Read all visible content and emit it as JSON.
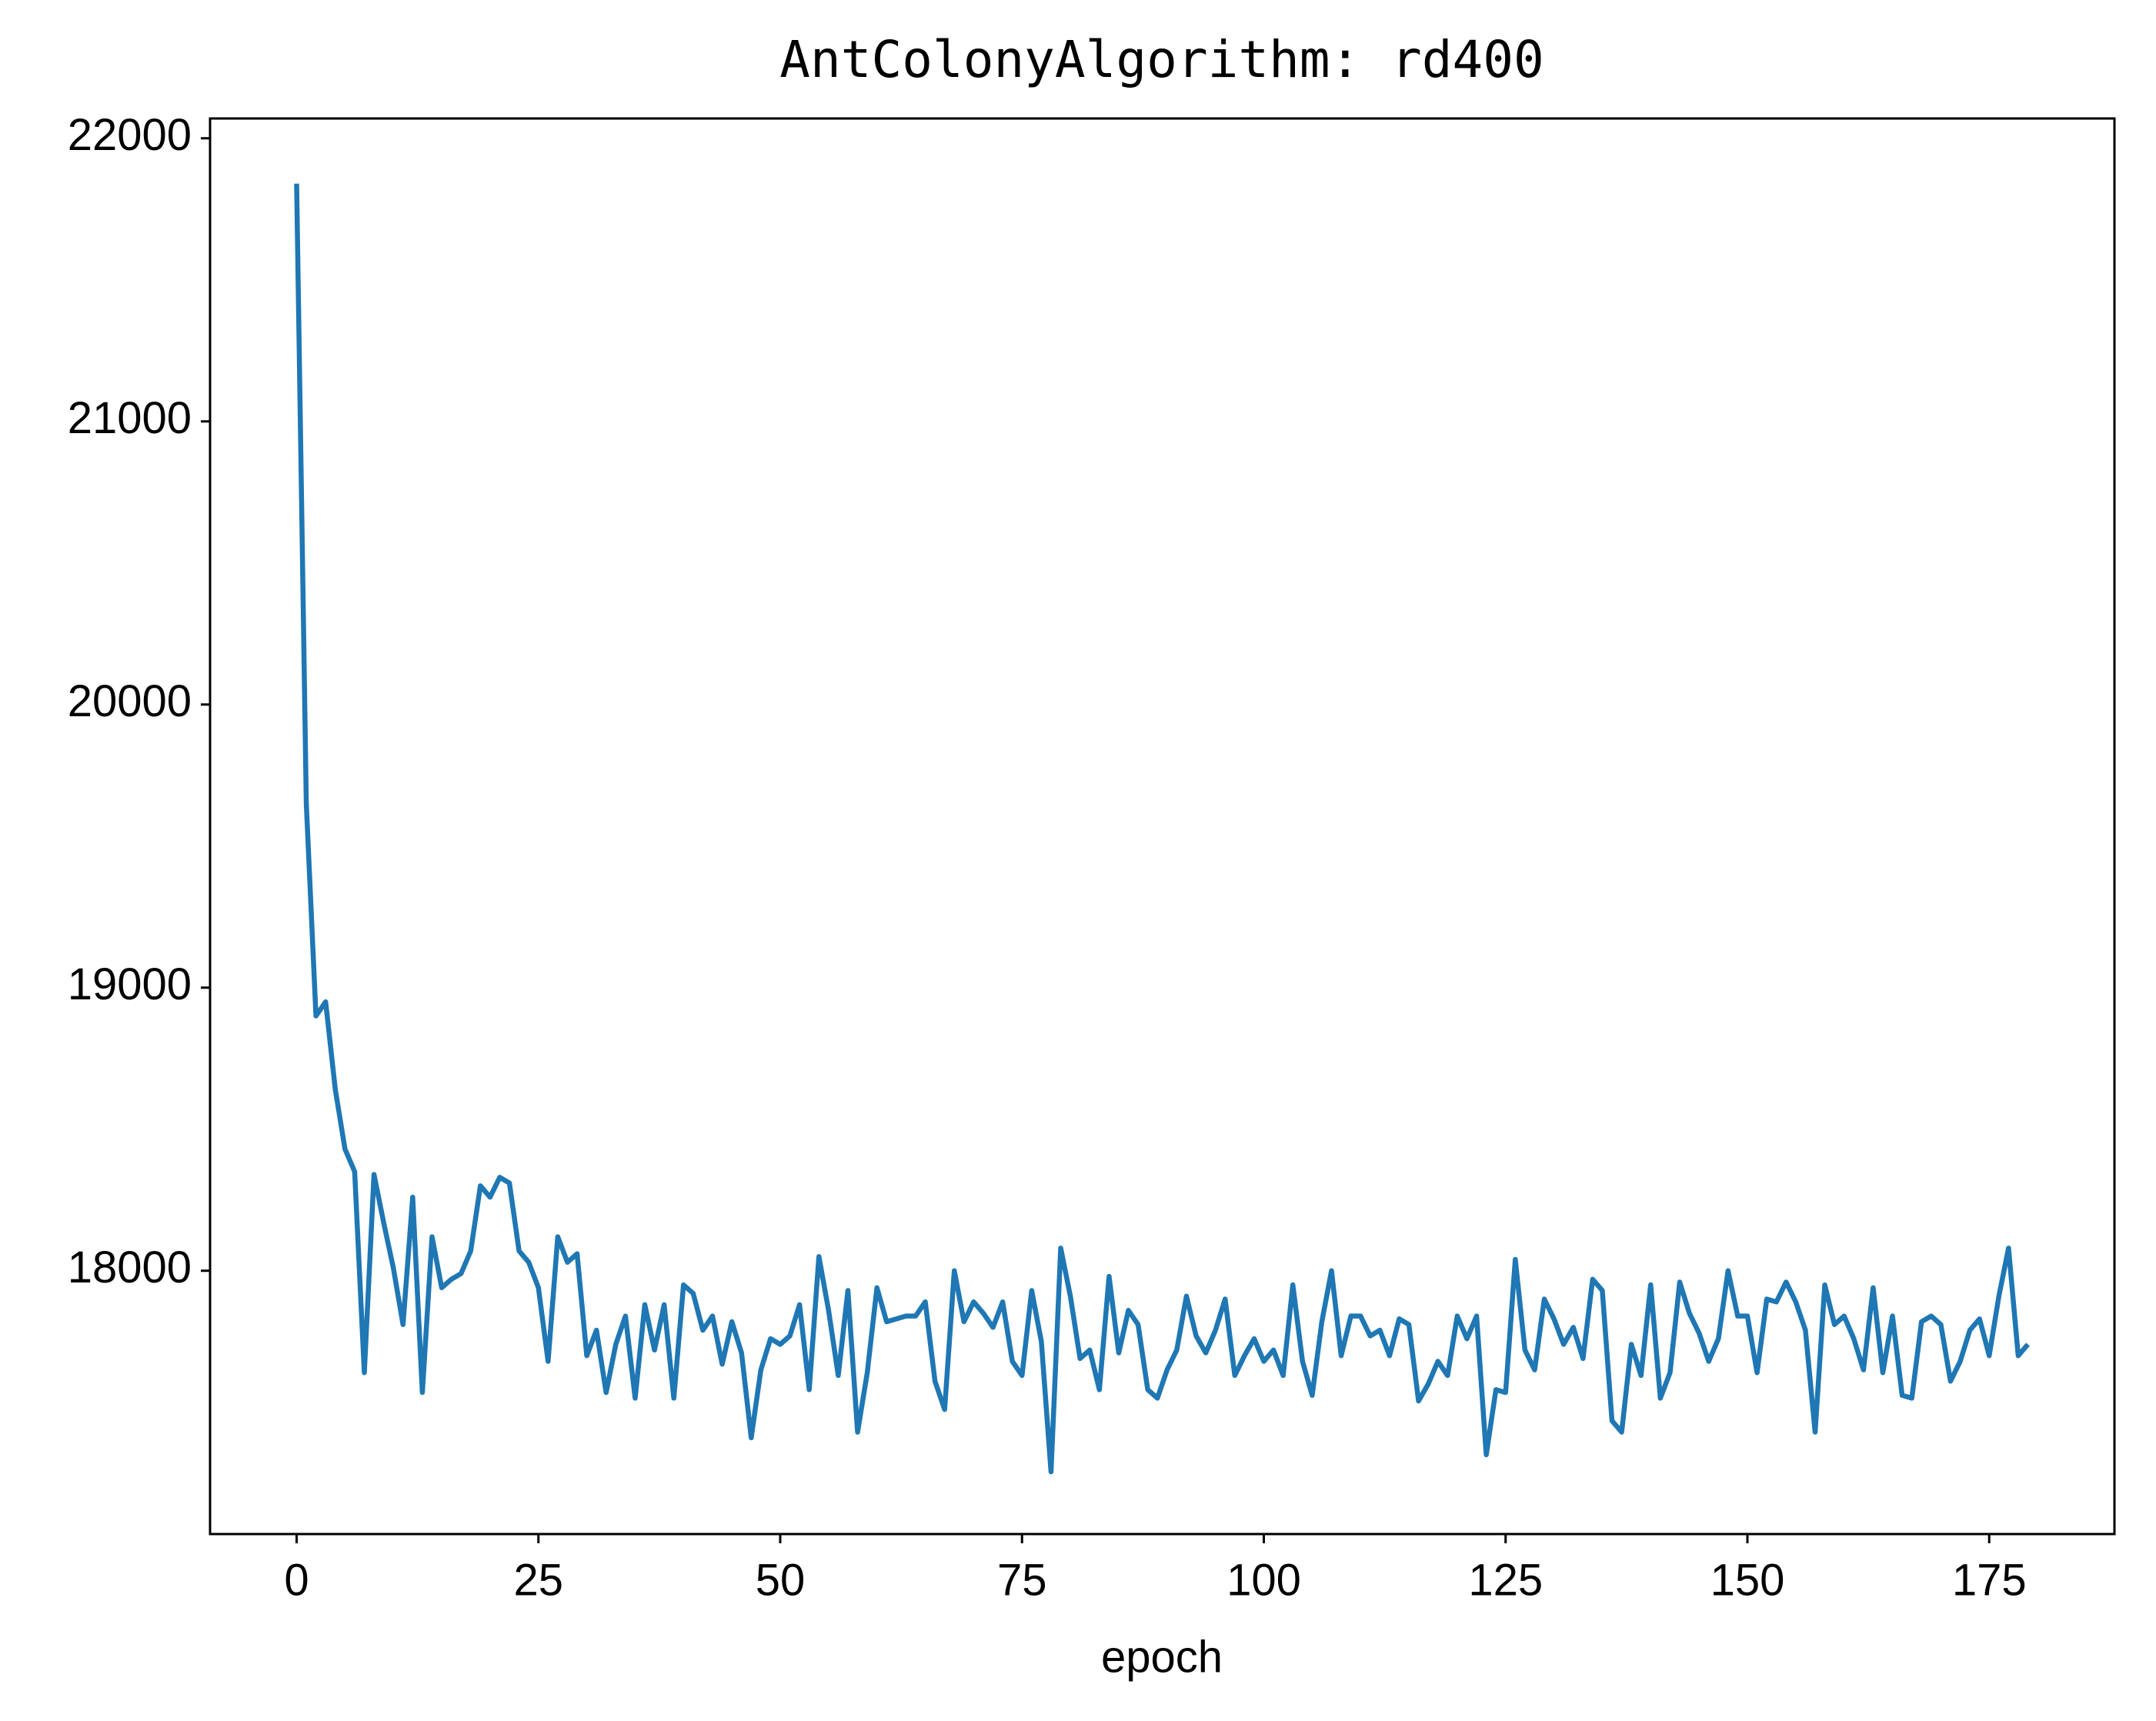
{
  "chart_data": {
    "type": "line",
    "title": "AntColonyAlgorithm: rd400",
    "x_label": "epoch",
    "x": [
      0,
      1,
      2,
      3,
      4,
      5,
      6,
      7,
      8,
      9,
      10,
      11,
      12,
      13,
      14,
      15,
      16,
      17,
      18,
      19,
      20,
      21,
      22,
      23,
      24,
      25,
      26,
      27,
      28,
      29,
      30,
      31,
      32,
      33,
      34,
      35,
      36,
      37,
      38,
      39,
      40,
      41,
      42,
      43,
      44,
      45,
      46,
      47,
      48,
      49,
      50,
      51,
      52,
      53,
      54,
      55,
      56,
      57,
      58,
      59,
      60,
      61,
      62,
      63,
      64,
      65,
      66,
      67,
      68,
      69,
      70,
      71,
      72,
      73,
      74,
      75,
      76,
      77,
      78,
      79,
      80,
      81,
      82,
      83,
      84,
      85,
      86,
      87,
      88,
      89,
      90,
      91,
      92,
      93,
      94,
      95,
      96,
      97,
      98,
      99,
      100,
      101,
      102,
      103,
      104,
      105,
      106,
      107,
      108,
      109,
      110,
      111,
      112,
      113,
      114,
      115,
      116,
      117,
      118,
      119,
      120,
      121,
      122,
      123,
      124,
      125,
      126,
      127,
      128,
      129,
      130,
      131,
      132,
      133,
      134,
      135,
      136,
      137,
      138,
      139,
      140,
      141,
      142,
      143,
      144,
      145,
      146,
      147,
      148,
      149,
      150,
      151,
      152,
      153,
      154,
      155,
      156,
      157,
      158,
      159,
      160,
      161,
      162,
      163,
      164,
      165,
      166,
      167,
      168,
      169,
      170,
      171,
      172,
      173,
      174,
      175,
      176,
      177,
      178,
      179
    ],
    "series": [
      {
        "name": "rd400",
        "color": "#1f77b4",
        "values": [
          21840,
          19650,
          18900,
          18950,
          18640,
          18430,
          18350,
          17640,
          18340,
          18170,
          18010,
          17810,
          18260,
          17570,
          18120,
          17940,
          17970,
          17990,
          18070,
          18300,
          18260,
          18330,
          18310,
          18070,
          18030,
          17940,
          17680,
          18120,
          18030,
          18060,
          17700,
          17790,
          17570,
          17740,
          17840,
          17550,
          17880,
          17720,
          17880,
          17550,
          17950,
          17920,
          17790,
          17840,
          17670,
          17820,
          17710,
          17410,
          17650,
          17760,
          17740,
          17770,
          17880,
          17580,
          18050,
          17860,
          17630,
          17930,
          17430,
          17640,
          17940,
          17820,
          17830,
          17840,
          17840,
          17890,
          17610,
          17510,
          18000,
          17820,
          17890,
          17850,
          17800,
          17890,
          17680,
          17630,
          17930,
          17750,
          17290,
          18080,
          17910,
          17690,
          17720,
          17580,
          17980,
          17710,
          17860,
          17810,
          17580,
          17550,
          17650,
          17720,
          17910,
          17770,
          17710,
          17790,
          17900,
          17630,
          17700,
          17760,
          17680,
          17720,
          17630,
          17950,
          17680,
          17560,
          17820,
          18000,
          17700,
          17840,
          17840,
          17770,
          17790,
          17700,
          17830,
          17810,
          17540,
          17600,
          17680,
          17630,
          17840,
          17760,
          17840,
          17350,
          17580,
          17570,
          18040,
          17720,
          17650,
          17900,
          17830,
          17740,
          17800,
          17690,
          17970,
          17930,
          17470,
          17430,
          17740,
          17630,
          17950,
          17550,
          17640,
          17960,
          17850,
          17780,
          17680,
          17760,
          18000,
          17840,
          17840,
          17640,
          17900,
          17890,
          17960,
          17890,
          17790,
          17430,
          17950,
          17810,
          17840,
          17760,
          17650,
          17940,
          17640,
          17840,
          17560,
          17550,
          17820,
          17840,
          17810,
          17610,
          17680,
          17790,
          17830,
          17700,
          17910,
          18080,
          17700,
          17740
        ]
      }
    ],
    "xlim": [
      -8.95,
      187.95
    ],
    "xticks": [
      0,
      25,
      50,
      75,
      100,
      125,
      150,
      175
    ],
    "ylim": [
      17070,
      22070
    ],
    "yticks": [
      18000,
      19000,
      20000,
      21000,
      22000
    ],
    "grid": false
  }
}
